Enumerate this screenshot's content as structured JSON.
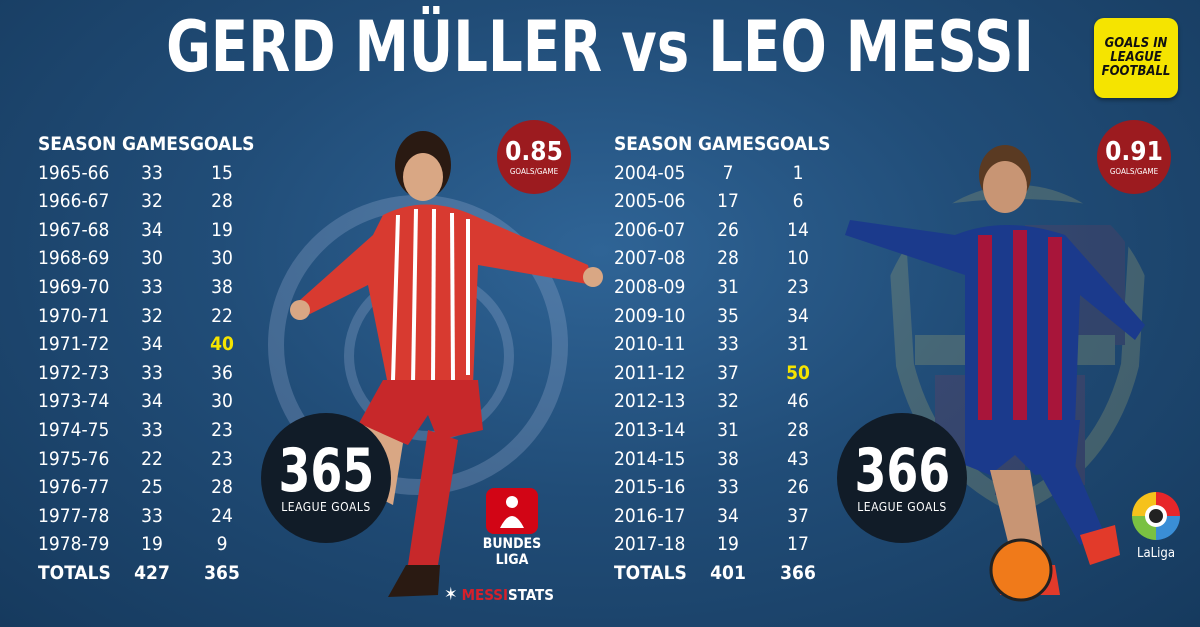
{
  "title": "GERD MÜLLER vs LEO MESSI",
  "corner_badge": "GOALS IN LEAGUE FOOTBALL",
  "headers": {
    "season": "SEASON",
    "games": "GAMES",
    "goals": "GOALS"
  },
  "muller": {
    "rows": [
      [
        "1965-66",
        "33",
        "15"
      ],
      [
        "1966-67",
        "32",
        "28"
      ],
      [
        "1967-68",
        "34",
        "19"
      ],
      [
        "1968-69",
        "30",
        "30"
      ],
      [
        "1969-70",
        "33",
        "38"
      ],
      [
        "1970-71",
        "32",
        "22"
      ],
      [
        "1971-72",
        "34",
        "40"
      ],
      [
        "1972-73",
        "33",
        "36"
      ],
      [
        "1973-74",
        "34",
        "30"
      ],
      [
        "1974-75",
        "33",
        "23"
      ],
      [
        "1975-76",
        "22",
        "23"
      ],
      [
        "1976-77",
        "25",
        "28"
      ],
      [
        "1977-78",
        "33",
        "24"
      ],
      [
        "1978-79",
        "19",
        "9"
      ]
    ],
    "highlight_index": 6,
    "totals": [
      "TOTALS",
      "427",
      "365"
    ],
    "ratio": "0.85",
    "ratio_label": "GOALS/GAME",
    "league_goals": "365",
    "league_goals_label": "LEAGUE GOALS"
  },
  "messi": {
    "rows": [
      [
        "2004-05",
        "7",
        "1"
      ],
      [
        "2005-06",
        "17",
        "6"
      ],
      [
        "2006-07",
        "26",
        "14"
      ],
      [
        "2007-08",
        "28",
        "10"
      ],
      [
        "2008-09",
        "31",
        "23"
      ],
      [
        "2009-10",
        "35",
        "34"
      ],
      [
        "2010-11",
        "33",
        "31"
      ],
      [
        "2011-12",
        "37",
        "50"
      ],
      [
        "2012-13",
        "32",
        "46"
      ],
      [
        "2013-14",
        "31",
        "28"
      ],
      [
        "2014-15",
        "38",
        "43"
      ],
      [
        "2015-16",
        "33",
        "26"
      ],
      [
        "2016-17",
        "34",
        "37"
      ],
      [
        "2017-18",
        "19",
        "17"
      ]
    ],
    "highlight_index": 7,
    "totals": [
      "TOTALS",
      "401",
      "366"
    ],
    "ratio": "0.91",
    "ratio_label": "GOALS/GAME",
    "league_goals": "366",
    "league_goals_label": "LEAGUE GOALS"
  },
  "bundesliga_logo": "BUNDES LIGA",
  "messistats": {
    "a": "MESSI",
    "b": "STATS"
  },
  "laliga_logo": "LaLiga",
  "colors": {
    "highlight": "#f5e400",
    "ratio_circle": "#9c1b1f",
    "goals_circle": "#111c28",
    "background": "#214d78"
  }
}
